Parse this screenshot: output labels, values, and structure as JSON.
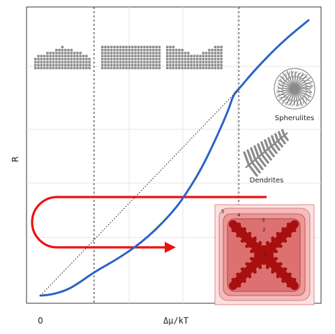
{
  "chart_data": {
    "type": "line",
    "xlabel": "Δμ/kT",
    "ylabel": "R",
    "x_ticks": [
      "0"
    ],
    "xlim": [
      0,
      1
    ],
    "ylim": [
      0,
      1
    ],
    "grid": true,
    "regimes_boundaries_x": [
      0.2,
      0.74
    ],
    "series": [
      {
        "style": "solid",
        "color": "#2a63c7",
        "x": [
          0.0,
          0.04,
          0.1,
          0.15,
          0.2,
          0.3,
          0.4,
          0.5,
          0.55,
          0.6,
          0.65,
          0.7,
          0.72,
          0.74,
          0.8,
          0.9,
          1.0
        ],
        "y": [
          0.0,
          0.003,
          0.02,
          0.05,
          0.085,
          0.14,
          0.21,
          0.31,
          0.38,
          0.46,
          0.56,
          0.67,
          0.73,
          0.75,
          0.82,
          0.92,
          1.0
        ]
      },
      {
        "style": "dotted",
        "color": "#333333",
        "x": [
          0.0,
          0.74
        ],
        "y": [
          0.0,
          0.75
        ]
      }
    ],
    "annotations": {
      "spherulites": "Spherulites",
      "dendrites": "Dendrites",
      "layer_numbers": [
        "1",
        "2",
        "3",
        "4",
        "5"
      ]
    },
    "colors": {
      "curve": "#2a63c7",
      "arrow": "#ee1111",
      "crystal_light": "#f3b3b3",
      "crystal_dark": "#aa1010",
      "icons": "#8a8a8a"
    }
  }
}
